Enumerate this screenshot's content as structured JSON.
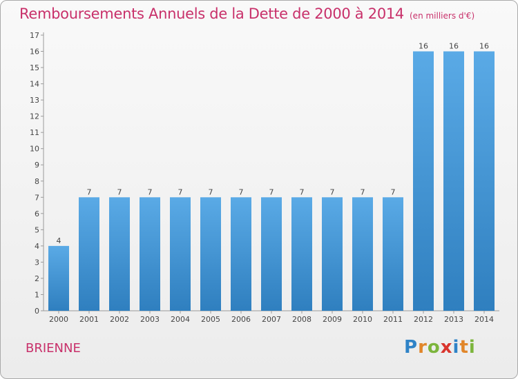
{
  "header": {
    "title": "Remboursements Annuels de la Dette de 2000 à 2014",
    "unit": "(en milliers d'€)"
  },
  "footer": {
    "location": "BRIENNE",
    "logo": "Proxiti"
  },
  "colors": {
    "accent": "#c8306a",
    "bar_top": "#5aaae6",
    "bar_bottom": "#2f7fbf"
  },
  "chart_data": {
    "type": "bar",
    "title": "Remboursements Annuels de la Dette de 2000 à 2014",
    "subtitle": "(en milliers d'€)",
    "xlabel": "",
    "ylabel": "",
    "categories": [
      "2000",
      "2001",
      "2002",
      "2003",
      "2004",
      "2005",
      "2006",
      "2007",
      "2008",
      "2009",
      "2010",
      "2011",
      "2012",
      "2013",
      "2014"
    ],
    "values": [
      4,
      7,
      7,
      7,
      7,
      7,
      7,
      7,
      7,
      7,
      7,
      7,
      16,
      16,
      16
    ],
    "ylim": [
      0,
      17
    ],
    "yticks": [
      0,
      1,
      2,
      3,
      4,
      5,
      6,
      7,
      8,
      9,
      10,
      11,
      12,
      13,
      14,
      15,
      16,
      17
    ],
    "grid": false,
    "data_labels": true,
    "legend": "none"
  }
}
